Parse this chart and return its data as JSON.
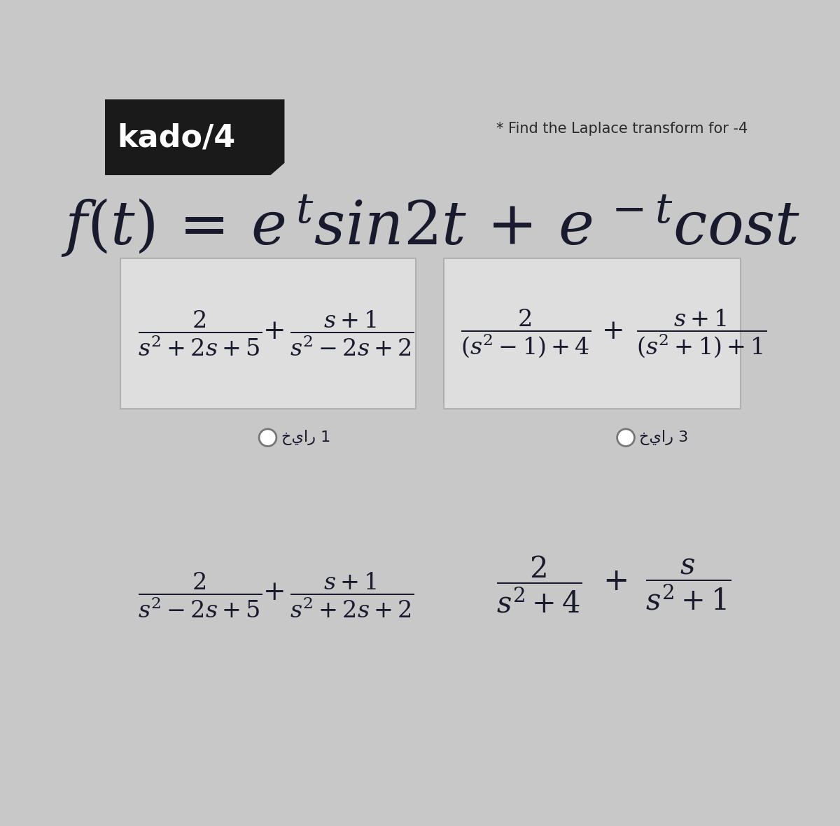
{
  "bg_color": "#c8c8c8",
  "header_bg": "#1a1a1a",
  "header_text": "kado/4",
  "header_text_color": "#ffffff",
  "question_text": "* Find the Laplace transform for -4",
  "question_color": "#2a2a2a",
  "box_bg": "#dedede",
  "box_border": "#b0b0b0",
  "text_color": "#1a1a2e",
  "radio_label_1": "خيار 1",
  "radio_label_3": "خيار 3"
}
